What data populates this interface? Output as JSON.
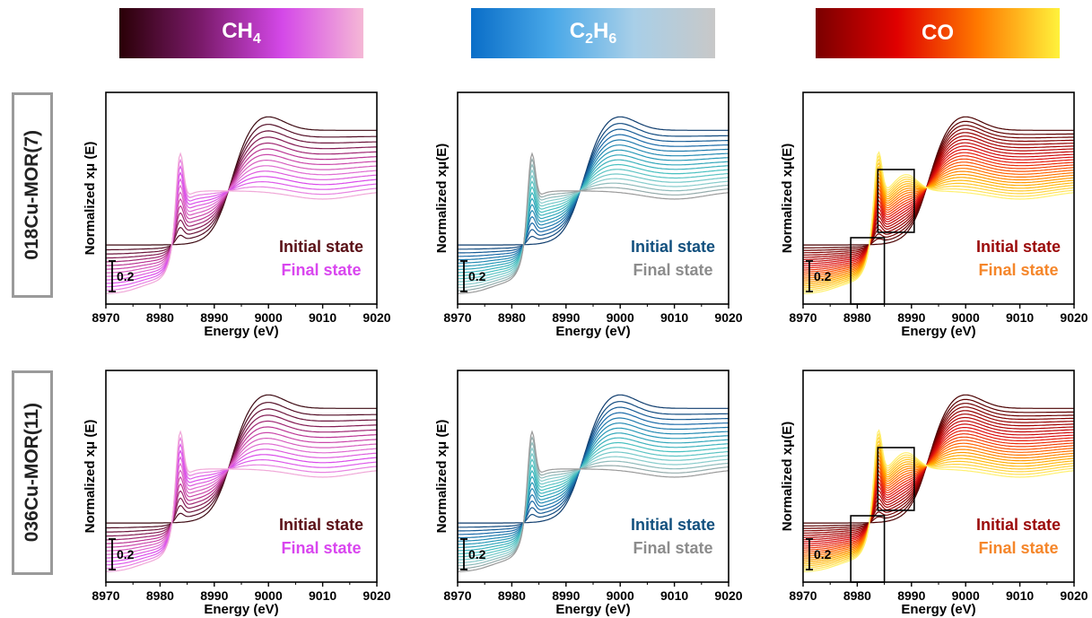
{
  "headers": [
    {
      "main": "CH",
      "sub": "4",
      "gradient": [
        "#2a0006",
        "#7a1a6a",
        "#d448e8",
        "#f5b8d6"
      ]
    },
    {
      "main": "C",
      "sub": "2",
      "tail": "H",
      "sub2": "6",
      "gradient": [
        "#0a6ec8",
        "#49a8e8",
        "#a8cfe8",
        "#c8c8c8"
      ]
    },
    {
      "main": "CO",
      "gradient": [
        "#7a0000",
        "#e00000",
        "#ff7a00",
        "#fff23c"
      ]
    }
  ],
  "row_labels": [
    "018Cu-MOR(7)",
    "036Cu-MOR(11)"
  ],
  "scale_bar_label": "0.2",
  "legend": {
    "initial": "Initial state",
    "final": "Final state"
  },
  "colors": {
    "ch4": {
      "initial": "#5a1016",
      "final": "#d946ef"
    },
    "c2h6": {
      "initial": "#12507e",
      "final": "#8c8c8c"
    },
    "co": {
      "initial": "#9b0a0a",
      "final": "#f5862a"
    }
  },
  "chart_data": [
    {
      "type": "line",
      "row": 0,
      "col": 0,
      "gas": "ch4",
      "xlabel": "Energy (eV)",
      "ylabel": "Normalized xμ (E)",
      "xlim": [
        8970,
        9020
      ],
      "xticks": [
        8970,
        8980,
        8990,
        9000,
        9010,
        9020
      ],
      "n_curves": 14,
      "inset_boxes": false
    },
    {
      "type": "line",
      "row": 0,
      "col": 1,
      "gas": "c2h6",
      "xlabel": "Energy (eV)",
      "ylabel": "Normalized xμ(E)",
      "xlim": [
        8970,
        9020
      ],
      "xticks": [
        8970,
        8980,
        8990,
        9000,
        9010,
        9020
      ],
      "n_curves": 16,
      "inset_boxes": false
    },
    {
      "type": "line",
      "row": 0,
      "col": 2,
      "gas": "co",
      "xlabel": "Energy (eV)",
      "ylabel": "Normalized xμ(E)",
      "xlim": [
        8970,
        9020
      ],
      "xticks": [
        8970,
        8980,
        8990,
        9000,
        9010,
        9020
      ],
      "n_curves": 24,
      "inset_boxes": true
    },
    {
      "type": "line",
      "row": 1,
      "col": 0,
      "gas": "ch4",
      "xlabel": "Energy (eV)",
      "ylabel": "Normalized xμ (E)",
      "xlim": [
        8970,
        9020
      ],
      "xticks": [
        8970,
        8980,
        8990,
        9000,
        9010,
        9020
      ],
      "n_curves": 14,
      "inset_boxes": false
    },
    {
      "type": "line",
      "row": 1,
      "col": 1,
      "gas": "c2h6",
      "xlabel": "Energy (eV)",
      "ylabel": "Normalized xμ (E)",
      "xlim": [
        8970,
        9020
      ],
      "xticks": [
        8970,
        8980,
        8990,
        9000,
        9010,
        9020
      ],
      "n_curves": 16,
      "inset_boxes": false
    },
    {
      "type": "line",
      "row": 1,
      "col": 2,
      "gas": "co",
      "xlabel": "Energy (eV)",
      "ylabel": "Normalized xμ(E)",
      "xlim": [
        8970,
        9020
      ],
      "xticks": [
        8970,
        8980,
        8990,
        9000,
        9010,
        9020
      ],
      "n_curves": 24,
      "inset_boxes": true
    }
  ]
}
